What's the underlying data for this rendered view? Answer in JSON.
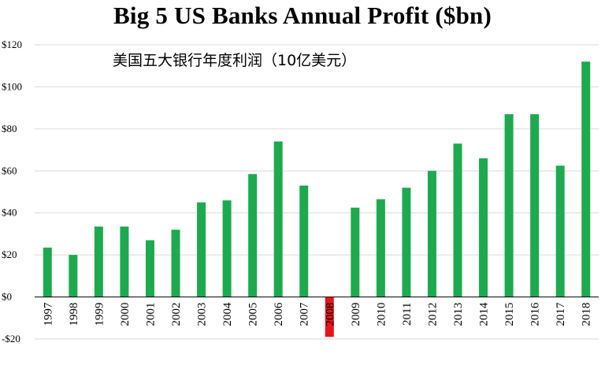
{
  "chart_data": {
    "type": "bar",
    "title": "Big 5 US Banks Annual Profit ($bn)",
    "subtitle": "美国五大银行年度利润（10亿美元）",
    "xlabel": "",
    "ylabel": "",
    "categories": [
      "1997",
      "1998",
      "1999",
      "2000",
      "2001",
      "2002",
      "2003",
      "2004",
      "2005",
      "2006",
      "2007",
      "2008",
      "2009",
      "2010",
      "2011",
      "2012",
      "2013",
      "2014",
      "2015",
      "2016",
      "2017",
      "2018"
    ],
    "values": [
      23.5,
      20,
      33.5,
      33.5,
      27,
      32,
      45,
      46,
      58.5,
      74,
      53,
      -19,
      42.5,
      46.5,
      52,
      60,
      73,
      66,
      87,
      87,
      62.5,
      112
    ],
    "ylim": [
      -20,
      120
    ],
    "yticks": [
      -20,
      0,
      20,
      40,
      60,
      80,
      100,
      120
    ],
    "ytick_labels": [
      "-$20",
      "$0",
      "$20",
      "$40",
      "$60",
      "$80",
      "$100",
      "$120"
    ],
    "grid": true,
    "legend": "none",
    "colors": {
      "positive": "#1daa4f",
      "negative": "#e8141b",
      "grid": "#d9d9d9",
      "axis": "#000000"
    }
  }
}
